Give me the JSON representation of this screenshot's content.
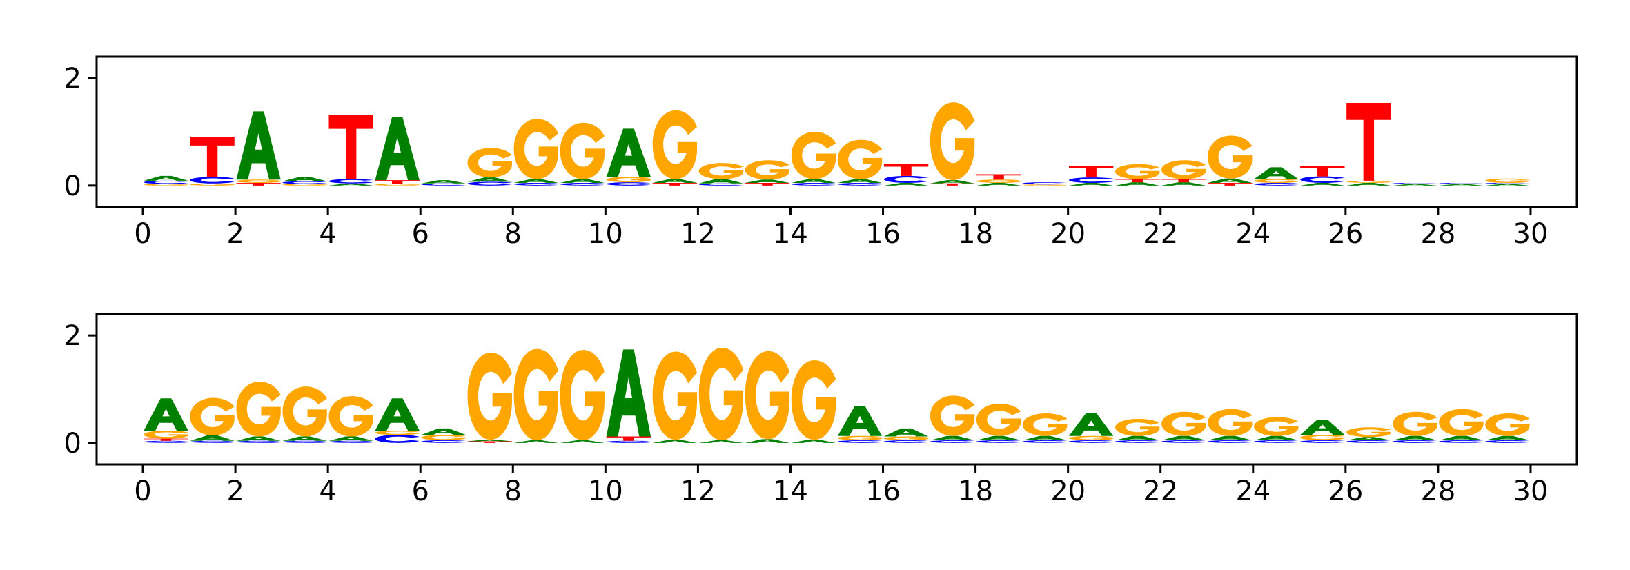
{
  "colors": {
    "A": "#008000",
    "C": "#0000ff",
    "G": "#ffa500",
    "T": "#ff0000"
  },
  "chart_data": [
    {
      "type": "sequence-logo",
      "xlim": [
        -1,
        31
      ],
      "ylim": [
        -0.4,
        2.4
      ],
      "yticks": [
        0,
        2
      ],
      "ytick_labels": [
        "0",
        "2"
      ],
      "xticks": [
        0,
        2,
        4,
        6,
        8,
        10,
        12,
        14,
        16,
        18,
        20,
        22,
        24,
        26,
        28,
        30
      ],
      "xtick_labels": [
        "0",
        "2",
        "4",
        "6",
        "8",
        "10",
        "12",
        "14",
        "16",
        "18",
        "20",
        "22",
        "24",
        "26",
        "28",
        "30"
      ],
      "positions": [
        {
          "x": 0.5,
          "letters": [
            [
              "G",
              0.03
            ],
            [
              "C",
              0.06
            ],
            [
              "A",
              0.09
            ]
          ]
        },
        {
          "x": 1.5,
          "letters": [
            [
              "G",
              0.04
            ],
            [
              "C",
              0.12
            ],
            [
              "T",
              0.75
            ]
          ]
        },
        {
          "x": 2.5,
          "letters": [
            [
              "T",
              0.05
            ],
            [
              "G",
              0.06
            ],
            [
              "A",
              1.27
            ]
          ]
        },
        {
          "x": 3.5,
          "letters": [
            [
              "G",
              0.03
            ],
            [
              "C",
              0.05
            ],
            [
              "A",
              0.08
            ]
          ]
        },
        {
          "x": 4.5,
          "letters": [
            [
              "A",
              0.04
            ],
            [
              "C",
              0.08
            ],
            [
              "T",
              1.2
            ]
          ]
        },
        {
          "x": 5.5,
          "letters": [
            [
              "G",
              0.03
            ],
            [
              "T",
              0.07
            ],
            [
              "A",
              1.17
            ]
          ]
        },
        {
          "x": 6.5,
          "letters": [
            [
              "C",
              0.04
            ],
            [
              "A",
              0.06
            ]
          ]
        },
        {
          "x": 7.5,
          "letters": [
            [
              "C",
              0.07
            ],
            [
              "A",
              0.08
            ],
            [
              "G",
              0.55
            ]
          ]
        },
        {
          "x": 8.5,
          "letters": [
            [
              "C",
              0.05
            ],
            [
              "A",
              0.07
            ],
            [
              "G",
              1.12
            ]
          ]
        },
        {
          "x": 9.5,
          "letters": [
            [
              "C",
              0.05
            ],
            [
              "A",
              0.07
            ],
            [
              "G",
              1.05
            ]
          ]
        },
        {
          "x": 10.5,
          "letters": [
            [
              "C",
              0.06
            ],
            [
              "G",
              0.1
            ],
            [
              "A",
              0.9
            ]
          ]
        },
        {
          "x": 11.5,
          "letters": [
            [
              "T",
              0.05
            ],
            [
              "A",
              0.07
            ],
            [
              "G",
              1.28
            ]
          ]
        },
        {
          "x": 12.5,
          "letters": [
            [
              "C",
              0.04
            ],
            [
              "A",
              0.08
            ],
            [
              "G",
              0.3
            ]
          ]
        },
        {
          "x": 13.5,
          "letters": [
            [
              "T",
              0.05
            ],
            [
              "A",
              0.06
            ],
            [
              "G",
              0.36
            ]
          ]
        },
        {
          "x": 14.5,
          "letters": [
            [
              "C",
              0.05
            ],
            [
              "A",
              0.07
            ],
            [
              "G",
              0.88
            ]
          ]
        },
        {
          "x": 15.5,
          "letters": [
            [
              "C",
              0.05
            ],
            [
              "A",
              0.07
            ],
            [
              "G",
              0.73
            ]
          ]
        },
        {
          "x": 16.5,
          "letters": [
            [
              "A",
              0.05
            ],
            [
              "C",
              0.13
            ],
            [
              "T",
              0.22
            ]
          ]
        },
        {
          "x": 17.5,
          "letters": [
            [
              "T",
              0.04
            ],
            [
              "A",
              0.06
            ],
            [
              "G",
              1.45
            ]
          ]
        },
        {
          "x": 18.5,
          "letters": [
            [
              "A",
              0.05
            ],
            [
              "G",
              0.06
            ],
            [
              "T",
              0.1
            ]
          ]
        },
        {
          "x": 19.5,
          "letters": [
            [
              "G",
              0.02
            ],
            [
              "C",
              0.04
            ]
          ]
        },
        {
          "x": 20.5,
          "letters": [
            [
              "A",
              0.05
            ],
            [
              "C",
              0.1
            ],
            [
              "T",
              0.22
            ]
          ]
        },
        {
          "x": 21.5,
          "letters": [
            [
              "A",
              0.06
            ],
            [
              "T",
              0.06
            ],
            [
              "G",
              0.28
            ]
          ]
        },
        {
          "x": 22.5,
          "letters": [
            [
              "A",
              0.06
            ],
            [
              "T",
              0.06
            ],
            [
              "G",
              0.35
            ]
          ]
        },
        {
          "x": 23.5,
          "letters": [
            [
              "T",
              0.05
            ],
            [
              "A",
              0.08
            ],
            [
              "G",
              0.8
            ]
          ]
        },
        {
          "x": 24.5,
          "letters": [
            [
              "C",
              0.05
            ],
            [
              "G",
              0.07
            ],
            [
              "A",
              0.22
            ]
          ]
        },
        {
          "x": 25.5,
          "letters": [
            [
              "A",
              0.05
            ],
            [
              "C",
              0.12
            ],
            [
              "T",
              0.2
            ]
          ]
        },
        {
          "x": 26.5,
          "letters": [
            [
              "A",
              0.05
            ],
            [
              "G",
              0.04
            ],
            [
              "T",
              1.45
            ]
          ]
        },
        {
          "x": 27.5,
          "letters": [
            [
              "A",
              0.03
            ],
            [
              "C",
              0.02
            ]
          ]
        },
        {
          "x": 28.5,
          "letters": [
            [
              "A",
              0.03
            ],
            [
              "C",
              0.02
            ]
          ]
        },
        {
          "x": 29.5,
          "letters": [
            [
              "A",
              0.03
            ],
            [
              "C",
              0.02
            ],
            [
              "G",
              0.08
            ]
          ]
        }
      ]
    },
    {
      "type": "sequence-logo",
      "xlim": [
        -1,
        31
      ],
      "ylim": [
        -0.4,
        2.4
      ],
      "yticks": [
        0,
        2
      ],
      "ytick_labels": [
        "0",
        "2"
      ],
      "xticks": [
        0,
        2,
        4,
        6,
        8,
        10,
        12,
        14,
        16,
        18,
        20,
        22,
        24,
        26,
        28,
        30
      ],
      "xtick_labels": [
        "0",
        "2",
        "4",
        "6",
        "8",
        "10",
        "12",
        "14",
        "16",
        "18",
        "20",
        "22",
        "24",
        "26",
        "28",
        "30"
      ],
      "positions": [
        {
          "x": 0.5,
          "letters": [
            [
              "C",
              0.04
            ],
            [
              "T",
              0.04
            ],
            [
              "G",
              0.15
            ],
            [
              "A",
              0.6
            ]
          ]
        },
        {
          "x": 1.5,
          "letters": [
            [
              "C",
              0.04
            ],
            [
              "A",
              0.1
            ],
            [
              "G",
              0.7
            ]
          ]
        },
        {
          "x": 2.5,
          "letters": [
            [
              "C",
              0.04
            ],
            [
              "A",
              0.08
            ],
            [
              "G",
              1.02
            ]
          ]
        },
        {
          "x": 3.5,
          "letters": [
            [
              "C",
              0.04
            ],
            [
              "A",
              0.08
            ],
            [
              "G",
              0.93
            ]
          ]
        },
        {
          "x": 4.5,
          "letters": [
            [
              "C",
              0.04
            ],
            [
              "A",
              0.08
            ],
            [
              "G",
              0.75
            ]
          ]
        },
        {
          "x": 5.5,
          "letters": [
            [
              "C",
              0.15
            ],
            [
              "G",
              0.08
            ],
            [
              "A",
              0.6
            ]
          ]
        },
        {
          "x": 6.5,
          "letters": [
            [
              "C",
              0.05
            ],
            [
              "G",
              0.1
            ],
            [
              "A",
              0.12
            ]
          ]
        },
        {
          "x": 7.5,
          "letters": [
            [
              "T",
              0.03
            ],
            [
              "A",
              0.03
            ],
            [
              "G",
              1.62
            ]
          ]
        },
        {
          "x": 8.5,
          "letters": [
            [
              "A",
              0.05
            ],
            [
              "G",
              1.7
            ]
          ]
        },
        {
          "x": 9.5,
          "letters": [
            [
              "A",
              0.05
            ],
            [
              "G",
              1.68
            ]
          ]
        },
        {
          "x": 10.5,
          "letters": [
            [
              "C",
              0.04
            ],
            [
              "T",
              0.08
            ],
            [
              "A",
              1.62
            ]
          ]
        },
        {
          "x": 11.5,
          "letters": [
            [
              "A",
              0.06
            ],
            [
              "G",
              1.64
            ]
          ]
        },
        {
          "x": 12.5,
          "letters": [
            [
              "A",
              0.05
            ],
            [
              "G",
              1.72
            ]
          ]
        },
        {
          "x": 13.5,
          "letters": [
            [
              "A",
              0.07
            ],
            [
              "G",
              1.64
            ]
          ]
        },
        {
          "x": 14.5,
          "letters": [
            [
              "A",
              0.06
            ],
            [
              "G",
              1.48
            ]
          ]
        },
        {
          "x": 15.5,
          "letters": [
            [
              "C",
              0.05
            ],
            [
              "G",
              0.08
            ],
            [
              "A",
              0.55
            ]
          ]
        },
        {
          "x": 16.5,
          "letters": [
            [
              "C",
              0.05
            ],
            [
              "G",
              0.07
            ],
            [
              "A",
              0.15
            ]
          ]
        },
        {
          "x": 17.5,
          "letters": [
            [
              "C",
              0.05
            ],
            [
              "A",
              0.08
            ],
            [
              "G",
              0.75
            ]
          ]
        },
        {
          "x": 18.5,
          "letters": [
            [
              "C",
              0.05
            ],
            [
              "A",
              0.08
            ],
            [
              "G",
              0.6
            ]
          ]
        },
        {
          "x": 19.5,
          "letters": [
            [
              "C",
              0.05
            ],
            [
              "A",
              0.08
            ],
            [
              "G",
              0.42
            ]
          ]
        },
        {
          "x": 20.5,
          "letters": [
            [
              "C",
              0.05
            ],
            [
              "G",
              0.08
            ],
            [
              "A",
              0.42
            ]
          ]
        },
        {
          "x": 21.5,
          "letters": [
            [
              "C",
              0.05
            ],
            [
              "A",
              0.08
            ],
            [
              "G",
              0.32
            ]
          ]
        },
        {
          "x": 22.5,
          "letters": [
            [
              "C",
              0.05
            ],
            [
              "A",
              0.08
            ],
            [
              "G",
              0.45
            ]
          ]
        },
        {
          "x": 23.5,
          "letters": [
            [
              "C",
              0.05
            ],
            [
              "A",
              0.08
            ],
            [
              "G",
              0.5
            ]
          ]
        },
        {
          "x": 24.5,
          "letters": [
            [
              "C",
              0.05
            ],
            [
              "A",
              0.08
            ],
            [
              "G",
              0.35
            ]
          ]
        },
        {
          "x": 25.5,
          "letters": [
            [
              "C",
              0.05
            ],
            [
              "G",
              0.1
            ],
            [
              "A",
              0.28
            ]
          ]
        },
        {
          "x": 26.5,
          "letters": [
            [
              "C",
              0.05
            ],
            [
              "A",
              0.06
            ],
            [
              "G",
              0.18
            ]
          ]
        },
        {
          "x": 27.5,
          "letters": [
            [
              "C",
              0.05
            ],
            [
              "A",
              0.08
            ],
            [
              "G",
              0.45
            ]
          ]
        },
        {
          "x": 28.5,
          "letters": [
            [
              "C",
              0.05
            ],
            [
              "A",
              0.08
            ],
            [
              "G",
              0.5
            ]
          ]
        },
        {
          "x": 29.5,
          "letters": [
            [
              "C",
              0.05
            ],
            [
              "A",
              0.08
            ],
            [
              "G",
              0.42
            ]
          ]
        }
      ]
    }
  ]
}
